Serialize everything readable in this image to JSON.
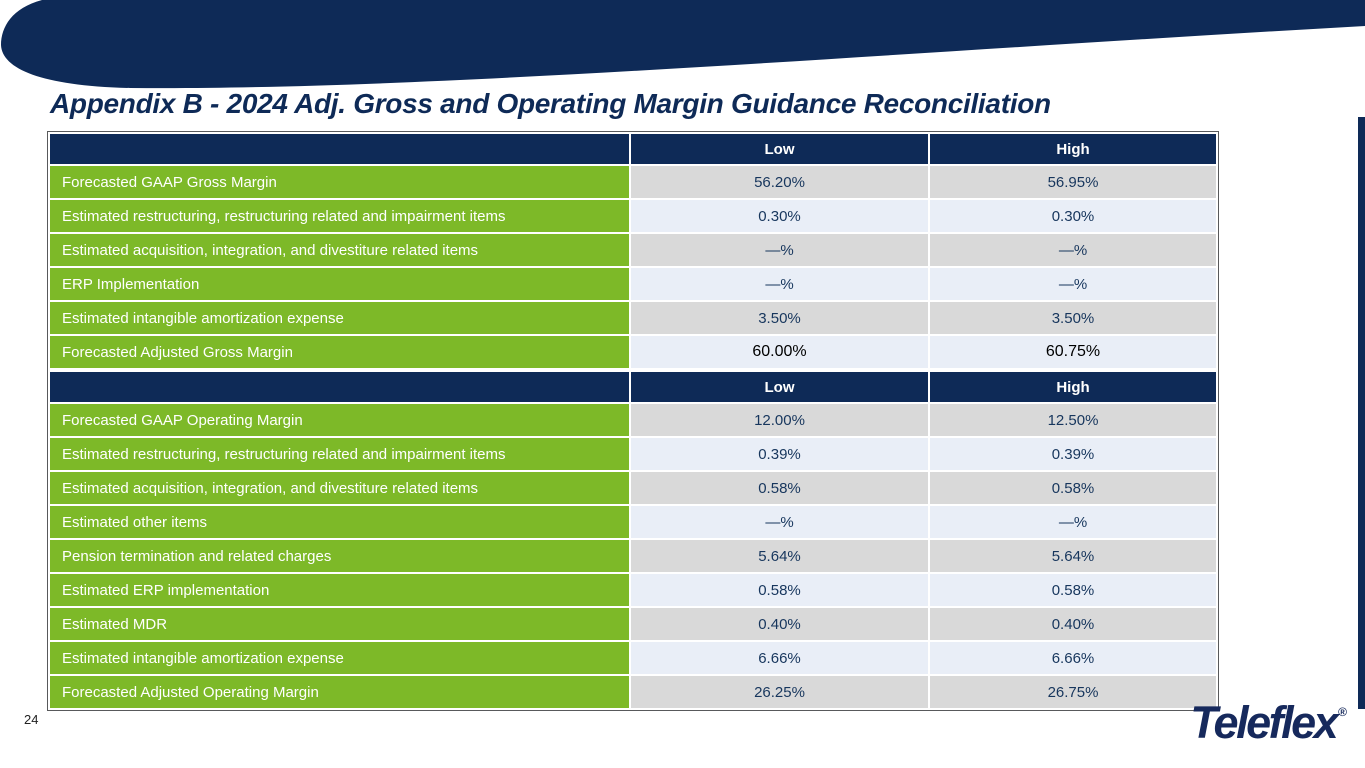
{
  "slide": {
    "title": "Appendix B - 2024 Adj. Gross and Operating Margin Guidance Reconciliation",
    "page_number": "24",
    "logo_text": "Teleflex",
    "logo_reg": "®"
  },
  "colors": {
    "navy": "#0e2a57",
    "green": "#7db928",
    "row_gray": "#d9d9d9",
    "row_light": "#e9eef7",
    "value_text": "#17365d"
  },
  "tables": [
    {
      "name": "gross-margin-reconciliation",
      "columns": [
        "",
        "Low",
        "High"
      ],
      "rows": [
        {
          "label": "Forecasted GAAP Gross Margin",
          "low": "56.20%",
          "high": "56.95%"
        },
        {
          "label": "Estimated restructuring, restructuring related and impairment items",
          "low": "0.30%",
          "high": "0.30%"
        },
        {
          "label": "Estimated acquisition, integration, and divestiture related items",
          "low": "—%",
          "high": "—%"
        },
        {
          "label": "ERP Implementation",
          "low": "—%",
          "high": "—%"
        },
        {
          "label": "Estimated intangible amortization expense",
          "low": "3.50%",
          "high": "3.50%"
        },
        {
          "label": "Forecasted Adjusted Gross Margin",
          "low": "60.00%",
          "high": "60.75%",
          "strong": true
        }
      ]
    },
    {
      "name": "operating-margin-reconciliation",
      "columns": [
        "",
        "Low",
        "High"
      ],
      "rows": [
        {
          "label": "Forecasted GAAP Operating Margin",
          "low": "12.00%",
          "high": "12.50%"
        },
        {
          "label": "Estimated restructuring, restructuring related and impairment items",
          "low": "0.39%",
          "high": "0.39%"
        },
        {
          "label": "Estimated acquisition, integration, and divestiture related items",
          "low": "0.58%",
          "high": "0.58%"
        },
        {
          "label": "Estimated other items",
          "low": "—%",
          "high": "—%"
        },
        {
          "label": "Pension termination and related charges",
          "low": "5.64%",
          "high": "5.64%"
        },
        {
          "label": "Estimated ERP implementation",
          "low": "0.58%",
          "high": "0.58%"
        },
        {
          "label": "Estimated MDR",
          "low": "0.40%",
          "high": "0.40%"
        },
        {
          "label": "Estimated intangible amortization expense",
          "low": "6.66%",
          "high": "6.66%"
        },
        {
          "label": "Forecasted Adjusted Operating Margin",
          "low": "26.25%",
          "high": "26.75%"
        }
      ]
    }
  ]
}
